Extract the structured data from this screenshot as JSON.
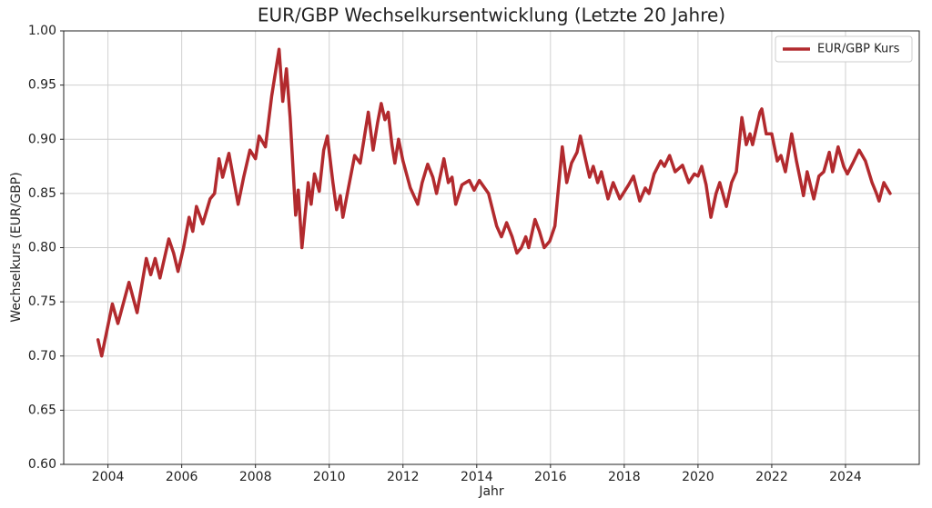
{
  "chart_data": {
    "type": "line",
    "title": "EUR/GBP Wechselkursentwicklung (Letzte 20 Jahre)",
    "x_label": "Jahr",
    "y_label": "Wechselkurs (EUR/GBP)",
    "grid": true,
    "legend": "upper right",
    "xlim": [
      2002.8,
      2026.0
    ],
    "xticks": [
      2004,
      2006,
      2008,
      2010,
      2012,
      2014,
      2016,
      2018,
      2020,
      2022,
      2024
    ],
    "ylim": [
      0.6,
      1.0
    ],
    "yticks": [
      {
        "value": 0.6,
        "label": "0.60"
      },
      {
        "value": 0.65,
        "label": "0.65"
      },
      {
        "value": 0.7,
        "label": "0.70"
      },
      {
        "value": 0.75,
        "label": "0.75"
      },
      {
        "value": 0.8,
        "label": "0.80"
      },
      {
        "value": 0.85,
        "label": "0.85"
      },
      {
        "value": 0.9,
        "label": "0.90"
      },
      {
        "value": 0.95,
        "label": "0.95"
      },
      {
        "value": 1.0,
        "label": "1.00"
      }
    ],
    "x": [
      2003.73,
      2003.83,
      2004.12,
      2004.27,
      2004.57,
      2004.79,
      2005.04,
      2005.16,
      2005.28,
      2005.41,
      2005.65,
      2005.78,
      2005.9,
      2006.05,
      2006.2,
      2006.3,
      2006.4,
      2006.57,
      2006.77,
      2006.89,
      2007.01,
      2007.11,
      2007.28,
      2007.53,
      2007.68,
      2007.85,
      2008.0,
      2008.1,
      2008.27,
      2008.44,
      2008.64,
      2008.74,
      2008.84,
      2008.94,
      2009.09,
      2009.16,
      2009.26,
      2009.43,
      2009.51,
      2009.6,
      2009.73,
      2009.85,
      2009.95,
      2010.1,
      2010.2,
      2010.3,
      2010.37,
      2010.52,
      2010.69,
      2010.84,
      2010.99,
      2011.06,
      2011.19,
      2011.31,
      2011.41,
      2011.51,
      2011.6,
      2011.7,
      2011.78,
      2011.88,
      2012.0,
      2012.2,
      2012.4,
      2012.52,
      2012.67,
      2012.81,
      2012.91,
      2013.11,
      2013.23,
      2013.33,
      2013.43,
      2013.6,
      2013.8,
      2013.93,
      2014.07,
      2014.32,
      2014.54,
      2014.67,
      2014.81,
      2014.96,
      2015.09,
      2015.21,
      2015.33,
      2015.41,
      2015.58,
      2015.7,
      2015.83,
      2015.98,
      2016.12,
      2016.32,
      2016.44,
      2016.57,
      2016.72,
      2016.81,
      2016.96,
      2017.06,
      2017.16,
      2017.28,
      2017.38,
      2017.56,
      2017.7,
      2017.88,
      2018.12,
      2018.25,
      2018.42,
      2018.57,
      2018.67,
      2018.81,
      2018.99,
      2019.09,
      2019.23,
      2019.38,
      2019.58,
      2019.75,
      2019.9,
      2020.0,
      2020.1,
      2020.22,
      2020.35,
      2020.49,
      2020.59,
      2020.77,
      2020.91,
      2021.04,
      2021.19,
      2021.31,
      2021.41,
      2021.48,
      2021.68,
      2021.73,
      2021.85,
      2022.0,
      2022.15,
      2022.25,
      2022.37,
      2022.54,
      2022.67,
      2022.79,
      2022.86,
      2022.96,
      2023.14,
      2023.28,
      2023.41,
      2023.56,
      2023.65,
      2023.8,
      2023.95,
      2024.05,
      2024.2,
      2024.37,
      2024.54,
      2024.72,
      2024.84,
      2024.91,
      2025.04,
      2025.21
    ],
    "series": [
      {
        "name": "EUR/GBP Kurs",
        "color": "#b22a2e",
        "values": [
          0.715,
          0.7,
          0.748,
          0.73,
          0.768,
          0.74,
          0.79,
          0.775,
          0.79,
          0.772,
          0.808,
          0.795,
          0.778,
          0.8,
          0.828,
          0.815,
          0.838,
          0.822,
          0.845,
          0.85,
          0.882,
          0.865,
          0.887,
          0.84,
          0.865,
          0.89,
          0.882,
          0.903,
          0.893,
          0.94,
          0.983,
          0.935,
          0.965,
          0.92,
          0.83,
          0.853,
          0.8,
          0.86,
          0.84,
          0.868,
          0.852,
          0.89,
          0.903,
          0.86,
          0.835,
          0.848,
          0.828,
          0.855,
          0.885,
          0.878,
          0.91,
          0.925,
          0.89,
          0.915,
          0.933,
          0.918,
          0.925,
          0.895,
          0.878,
          0.9,
          0.88,
          0.855,
          0.84,
          0.86,
          0.877,
          0.865,
          0.85,
          0.882,
          0.86,
          0.865,
          0.84,
          0.858,
          0.862,
          0.853,
          0.862,
          0.85,
          0.82,
          0.81,
          0.823,
          0.81,
          0.795,
          0.8,
          0.81,
          0.8,
          0.826,
          0.815,
          0.8,
          0.806,
          0.82,
          0.893,
          0.86,
          0.878,
          0.888,
          0.903,
          0.88,
          0.865,
          0.875,
          0.86,
          0.87,
          0.845,
          0.86,
          0.845,
          0.858,
          0.866,
          0.843,
          0.855,
          0.85,
          0.868,
          0.88,
          0.875,
          0.885,
          0.87,
          0.876,
          0.86,
          0.868,
          0.866,
          0.875,
          0.858,
          0.828,
          0.85,
          0.86,
          0.838,
          0.86,
          0.87,
          0.92,
          0.895,
          0.905,
          0.895,
          0.925,
          0.928,
          0.905,
          0.905,
          0.88,
          0.885,
          0.87,
          0.905,
          0.88,
          0.86,
          0.848,
          0.87,
          0.845,
          0.866,
          0.87,
          0.888,
          0.87,
          0.893,
          0.875,
          0.868,
          0.878,
          0.89,
          0.88,
          0.86,
          0.85,
          0.843,
          0.86,
          0.85
        ]
      }
    ]
  }
}
